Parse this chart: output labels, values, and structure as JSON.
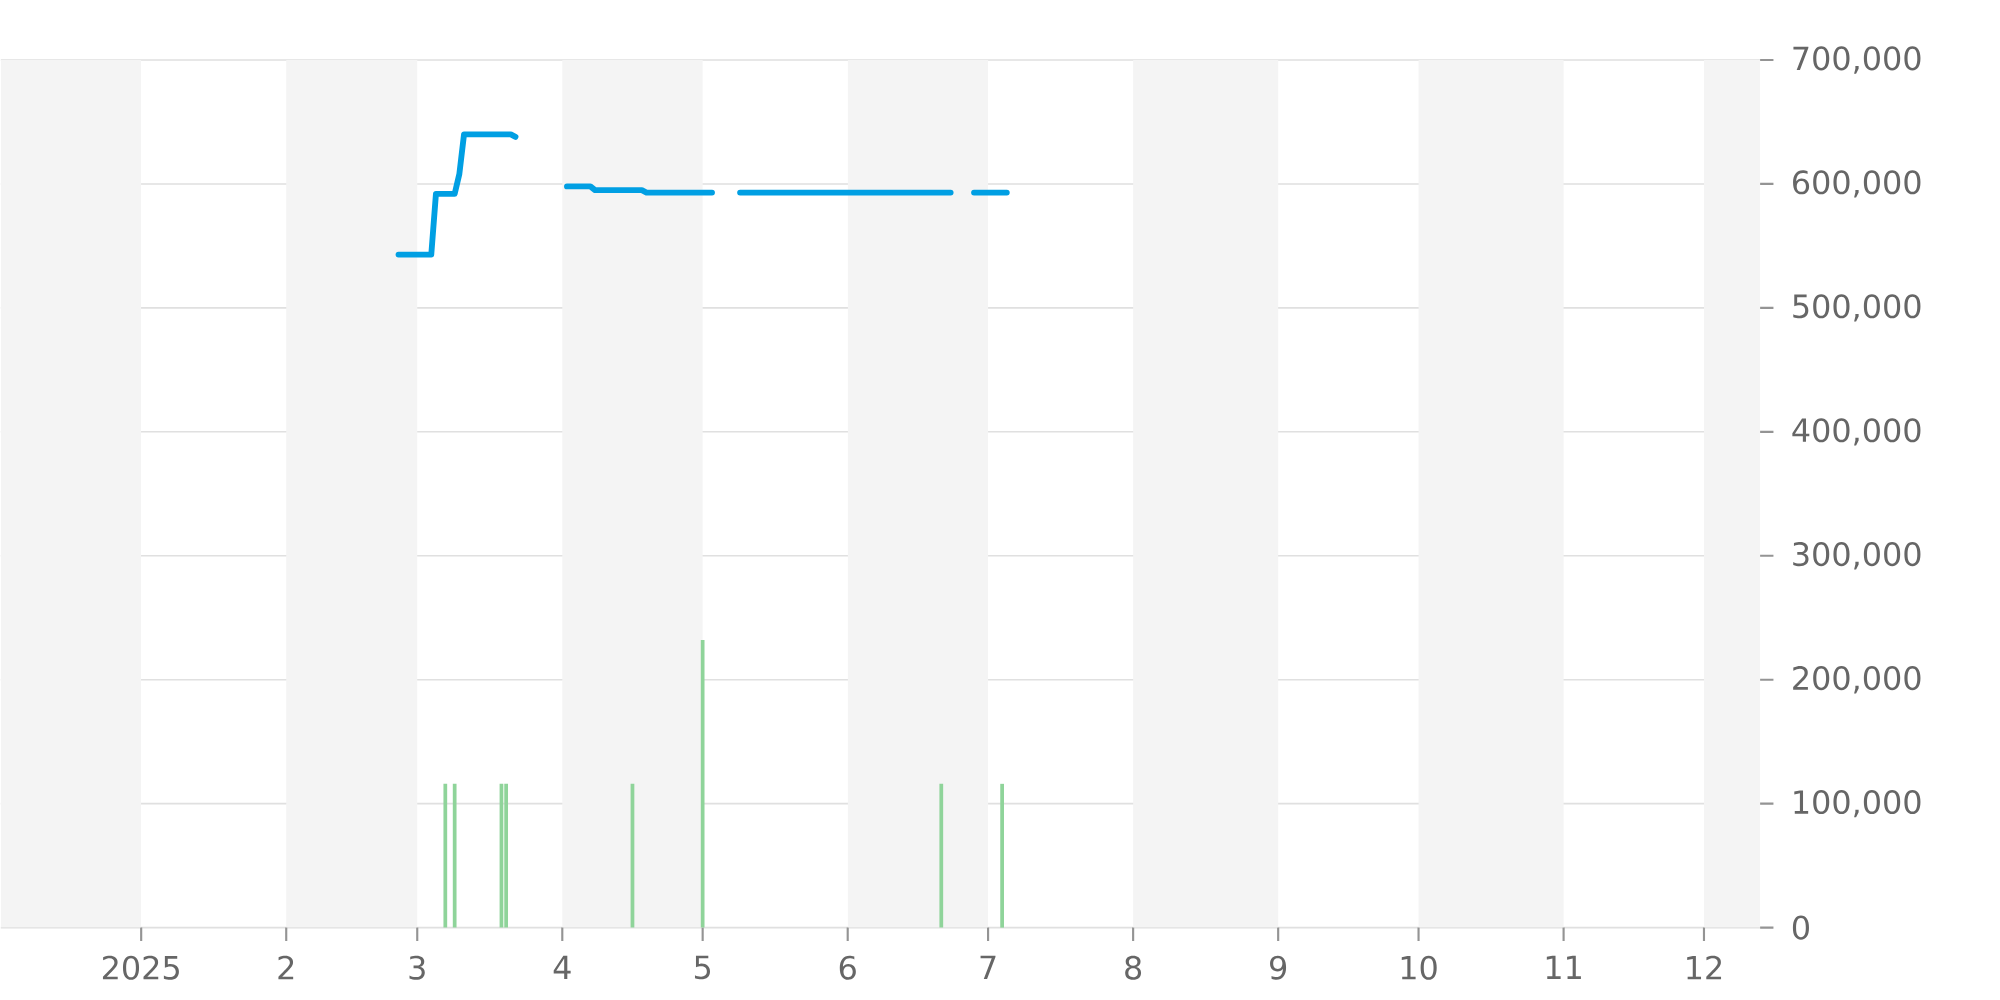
{
  "chart_data": {
    "type": "line",
    "xlim": [
      "2024-12-02",
      "2025-12-13"
    ],
    "ylim": [
      0,
      700000
    ],
    "xticks": [
      {
        "value": "2025-01-01",
        "label": "2025"
      },
      {
        "value": "2025-02-01",
        "label": "2"
      },
      {
        "value": "2025-03-01",
        "label": "3"
      },
      {
        "value": "2025-04-01",
        "label": "4"
      },
      {
        "value": "2025-05-01",
        "label": "5"
      },
      {
        "value": "2025-06-01",
        "label": "6"
      },
      {
        "value": "2025-07-01",
        "label": "7"
      },
      {
        "value": "2025-08-01",
        "label": "8"
      },
      {
        "value": "2025-09-01",
        "label": "9"
      },
      {
        "value": "2025-10-01",
        "label": "10"
      },
      {
        "value": "2025-11-01",
        "label": "11"
      },
      {
        "value": "2025-12-01",
        "label": "12"
      }
    ],
    "yticks": [
      {
        "value": 0,
        "label": "0"
      },
      {
        "value": 100000,
        "label": "100,000"
      },
      {
        "value": 200000,
        "label": "200,000"
      },
      {
        "value": 300000,
        "label": "300,000"
      },
      {
        "value": 400000,
        "label": "400,000"
      },
      {
        "value": 500000,
        "label": "500,000"
      },
      {
        "value": 600000,
        "label": "600,000"
      },
      {
        "value": 700000,
        "label": "700,000"
      }
    ],
    "grid": "y",
    "bands": [
      {
        "axis": "x",
        "from": "2024-12-02",
        "to": "2025-01-01",
        "color": "#f4f4f4"
      },
      {
        "axis": "x",
        "from": "2025-02-01",
        "to": "2025-03-01",
        "color": "#f4f4f4"
      },
      {
        "axis": "x",
        "from": "2025-04-01",
        "to": "2025-05-01",
        "color": "#f4f4f4"
      },
      {
        "axis": "x",
        "from": "2025-06-01",
        "to": "2025-07-01",
        "color": "#f4f4f4"
      },
      {
        "axis": "x",
        "from": "2025-08-01",
        "to": "2025-09-01",
        "color": "#f4f4f4"
      },
      {
        "axis": "x",
        "from": "2025-10-01",
        "to": "2025-11-01",
        "color": "#f4f4f4"
      },
      {
        "axis": "x",
        "from": "2025-12-01",
        "to": "2025-12-13",
        "color": "#f4f4f4"
      }
    ],
    "series": [
      {
        "type": "bar",
        "color": "#8fd49a",
        "x": [
          "2025-03-07",
          "2025-03-09",
          "2025-03-19",
          "2025-03-20",
          "2025-04-16",
          "2025-05-01",
          "2025-06-21",
          "2025-07-04"
        ],
        "values": [
          116000,
          116000,
          116000,
          116000,
          116000,
          232000,
          116000,
          116000
        ]
      },
      {
        "color": "#009fe3",
        "x": [
          "2025-02-25",
          "2025-03-04",
          "2025-03-05",
          "2025-03-09",
          "2025-03-10",
          "2025-03-11",
          "2025-03-21",
          "2025-03-22",
          "2025-03-27",
          "2025-04-02",
          "2025-04-07",
          "2025-04-08",
          "2025-04-18",
          "2025-04-19",
          "2025-05-03",
          "2025-05-06",
          "2025-05-09",
          "2025-06-23",
          "2025-06-25",
          "2025-06-28",
          "2025-07-05"
        ],
        "values": [
          543000,
          543000,
          592000,
          592000,
          608000,
          640000,
          640000,
          638000,
          null,
          598000,
          598000,
          595000,
          595000,
          593000,
          593000,
          null,
          593000,
          593000,
          null,
          593000,
          593000
        ]
      }
    ]
  }
}
